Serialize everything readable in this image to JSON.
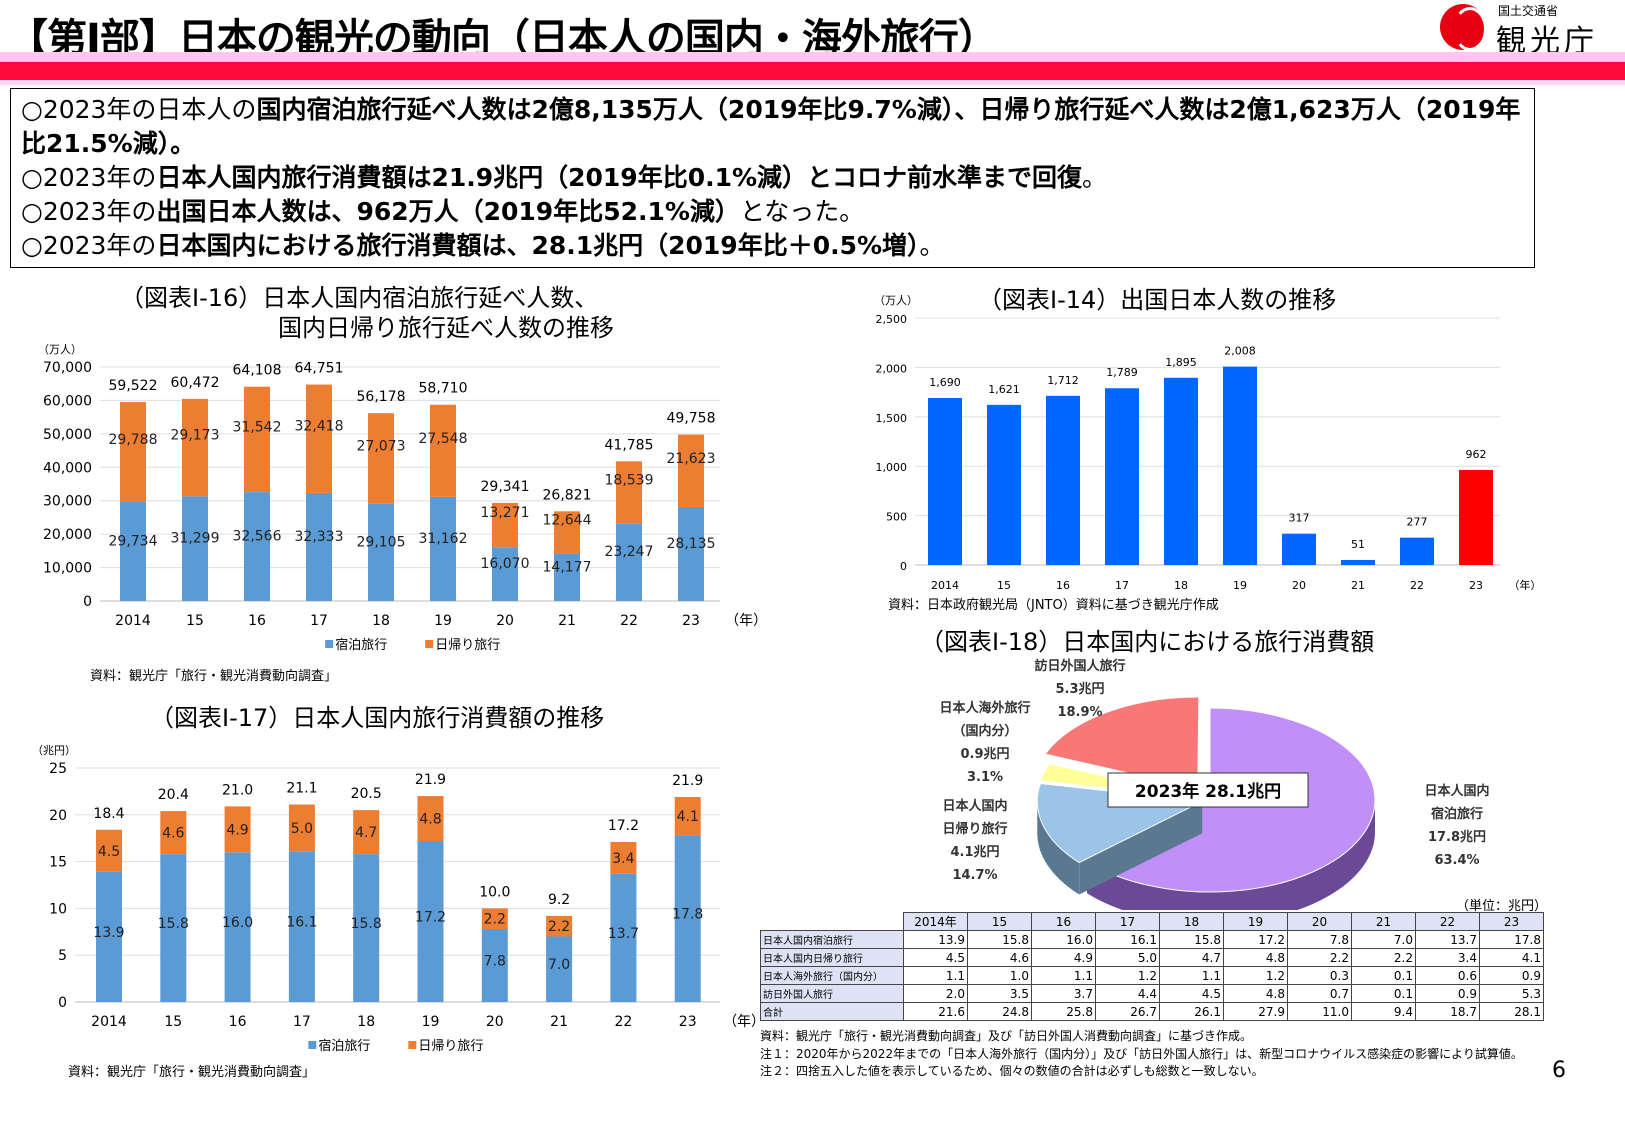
{
  "header": {
    "title": "【第Ⅰ部】日本の観光の動向（日本人の国内・海外旅行）",
    "logo_ministry": "国土交通省",
    "logo_name": "観光庁"
  },
  "summary": [
    {
      "a": "○2023年の日本人の",
      "b": "国内宿泊旅行延べ人数は2億8,135万人（2019年比9.7%減）、日帰り旅行延べ人数は2億1,623万人（2019年比21.5%減）。",
      "c": ""
    },
    {
      "a": "○2023年の",
      "b": "日本人国内旅行消費額は21.9兆円（2019年比0.1%減）とコロナ前水準まで回復",
      "c": "。"
    },
    {
      "a": "○2023年の",
      "b": "出国日本人数は、962万人（2019年比52.1%減）",
      "c": "となった。"
    },
    {
      "a": "○2023年の",
      "b": "日本国内における旅行消費額は、28.1兆円（2019年比＋0.5%増）",
      "c": "。"
    }
  ],
  "page_number": "6",
  "colors": {
    "shukuhaku": "#5b9bd5",
    "higaeri": "#ed7d31",
    "outbound": "#0066ff",
    "outbound_2023": "#ff0000",
    "accent": "#ff0a3c"
  },
  "chart_data": [
    {
      "id": "I-16",
      "type": "bar",
      "stacked": true,
      "title_line1": "（図表Ⅰ-16）日本人国内宿泊旅行延べ人数、",
      "title_line2": "国内日帰り旅行延べ人数の推移",
      "yunit": "（万人）",
      "xunit": "（年）",
      "ylim": [
        0,
        70000
      ],
      "yticks": [
        0,
        10000,
        20000,
        30000,
        40000,
        50000,
        60000,
        70000
      ],
      "ytick_labels": [
        "0",
        "10,000",
        "20,000",
        "30,000",
        "40,000",
        "50,000",
        "60,000",
        "70,000"
      ],
      "grid": true,
      "legend": "bottom",
      "categories": [
        "2014",
        "15",
        "16",
        "17",
        "18",
        "19",
        "20",
        "21",
        "22",
        "23"
      ],
      "series": [
        {
          "name": "宿泊旅行",
          "values": [
            29734,
            31299,
            32566,
            32333,
            29105,
            31162,
            16070,
            14177,
            23247,
            28135
          ],
          "labels": [
            "29,734",
            "31,299",
            "32,566",
            "32,333",
            "29,105",
            "31,162",
            "16,070",
            "14,177",
            "23,247",
            "28,135"
          ]
        },
        {
          "name": "日帰り旅行",
          "values": [
            29788,
            29173,
            31542,
            32418,
            27073,
            27548,
            13271,
            12644,
            18539,
            21623
          ],
          "labels": [
            "29,788",
            "29,173",
            "31,542",
            "32,418",
            "27,073",
            "27,548",
            "13,271",
            "12,644",
            "18,539",
            "21,623"
          ]
        }
      ],
      "totals": [
        "59,522",
        "60,472",
        "64,108",
        "64,751",
        "56,178",
        "58,710",
        "29,341",
        "26,821",
        "41,785",
        "49,758"
      ],
      "source": "資料：観光庁「旅行・観光消費動向調査」"
    },
    {
      "id": "I-14",
      "type": "bar",
      "title": "（図表Ⅰ-14）出国日本人数の推移",
      "yunit": "（万人）",
      "xunit": "（年）",
      "ylim": [
        0,
        2500
      ],
      "yticks": [
        0,
        500,
        1000,
        1500,
        2000,
        2500
      ],
      "ytick_labels": [
        "0",
        "500",
        "1,000",
        "1,500",
        "2,000",
        "2,500"
      ],
      "grid": true,
      "categories": [
        "2014",
        "15",
        "16",
        "17",
        "18",
        "19",
        "20",
        "21",
        "22",
        "23"
      ],
      "values": [
        1690,
        1621,
        1712,
        1789,
        1895,
        2008,
        317,
        51,
        277,
        962
      ],
      "labels": [
        "1,690",
        "1,621",
        "1,712",
        "1,789",
        "1,895",
        "2,008",
        "317",
        "51",
        "277",
        "962"
      ],
      "source": "資料：日本政府観光局（JNTO）資料に基づき観光庁作成"
    },
    {
      "id": "I-17",
      "type": "bar",
      "stacked": true,
      "title": "（図表Ⅰ-17）日本人国内旅行消費額の推移",
      "yunit": "（兆円）",
      "xunit": "（年）",
      "ylim": [
        0,
        25
      ],
      "yticks": [
        0,
        5,
        10,
        15,
        20,
        25
      ],
      "ytick_labels": [
        "0",
        "5",
        "10",
        "15",
        "20",
        "25"
      ],
      "grid": true,
      "legend": "bottom",
      "categories": [
        "2014",
        "15",
        "16",
        "17",
        "18",
        "19",
        "20",
        "21",
        "22",
        "23"
      ],
      "series": [
        {
          "name": "宿泊旅行",
          "values": [
            13.9,
            15.8,
            16.0,
            16.1,
            15.8,
            17.2,
            7.8,
            7.0,
            13.7,
            17.8
          ],
          "labels": [
            "13.9",
            "15.8",
            "16.0",
            "16.1",
            "15.8",
            "17.2",
            "7.8",
            "7.0",
            "13.7",
            "17.8"
          ]
        },
        {
          "name": "日帰り旅行",
          "values": [
            4.5,
            4.6,
            4.9,
            5.0,
            4.7,
            4.8,
            2.2,
            2.2,
            3.4,
            4.1
          ],
          "labels": [
            "4.5",
            "4.6",
            "4.9",
            "5.0",
            "4.7",
            "4.8",
            "2.2",
            "2.2",
            "3.4",
            "4.1"
          ]
        }
      ],
      "totals": [
        "18.4",
        "20.4",
        "21.0",
        "21.1",
        "20.5",
        "21.9",
        "10.0",
        "9.2",
        "17.2",
        "21.9"
      ],
      "source": "資料：観光庁「旅行・観光消費動向調査」"
    },
    {
      "id": "I-18",
      "type": "pie",
      "title": "（図表Ⅰ-18）日本国内における旅行消費額",
      "center_label": "2023年  28.1兆円",
      "slices": [
        {
          "name": "日本人国内宿泊旅行",
          "lines": [
            "日本人国内",
            "宿泊旅行",
            "17.8兆円",
            "63.4%"
          ],
          "value": 17.8,
          "percent": 63.4,
          "color": "#c090f8"
        },
        {
          "name": "日本人国内日帰り旅行",
          "lines": [
            "日本人国内",
            "日帰り旅行",
            "4.1兆円",
            "14.7%"
          ],
          "value": 4.1,
          "percent": 14.7,
          "color": "#9dc3e6"
        },
        {
          "name": "日本人海外旅行（国内分）",
          "lines": [
            "日本人海外旅行",
            "（国内分）",
            "0.9兆円",
            "3.1%"
          ],
          "value": 0.9,
          "percent": 3.1,
          "color": "#ffff99"
        },
        {
          "name": "訪日外国人旅行",
          "lines": [
            "訪日外国人旅行",
            "5.3兆円",
            "18.9%"
          ],
          "value": 5.3,
          "percent": 18.9,
          "color": "#f87878"
        }
      ],
      "table": {
        "unit": "（単位：兆円）",
        "columns": [
          "2014年",
          "15",
          "16",
          "17",
          "18",
          "19",
          "20",
          "21",
          "22",
          "23"
        ],
        "rows": [
          {
            "label": "日本人国内宿泊旅行",
            "values": [
              "13.9",
              "15.8",
              "16.0",
              "16.1",
              "15.8",
              "17.2",
              "7.8",
              "7.0",
              "13.7",
              "17.8"
            ]
          },
          {
            "label": "日本人国内日帰り旅行",
            "values": [
              "4.5",
              "4.6",
              "4.9",
              "5.0",
              "4.7",
              "4.8",
              "2.2",
              "2.2",
              "3.4",
              "4.1"
            ]
          },
          {
            "label": "日本人海外旅行（国内分）",
            "values": [
              "1.1",
              "1.0",
              "1.1",
              "1.2",
              "1.1",
              "1.2",
              "0.3",
              "0.1",
              "0.6",
              "0.9"
            ]
          },
          {
            "label": "訪日外国人旅行",
            "values": [
              "2.0",
              "3.5",
              "3.7",
              "4.4",
              "4.5",
              "4.8",
              "0.7",
              "0.1",
              "0.9",
              "5.3"
            ]
          },
          {
            "label": "合計",
            "values": [
              "21.6",
              "24.8",
              "25.8",
              "26.7",
              "26.1",
              "27.9",
              "11.0",
              "9.4",
              "18.7",
              "28.1"
            ]
          }
        ]
      },
      "notes": [
        "資料：観光庁「旅行・観光消費動向調査」及び「訪日外国人消費動向調査」に基づき作成。",
        "注１：2020年から2022年までの「日本人海外旅行（国内分）」及び「訪日外国人旅行」は、新型コロナウイルス感染症の影響により試算値。",
        "注２：四捨五入した値を表示しているため、個々の数値の合計は必ずしも総数と一致しない。"
      ]
    }
  ]
}
